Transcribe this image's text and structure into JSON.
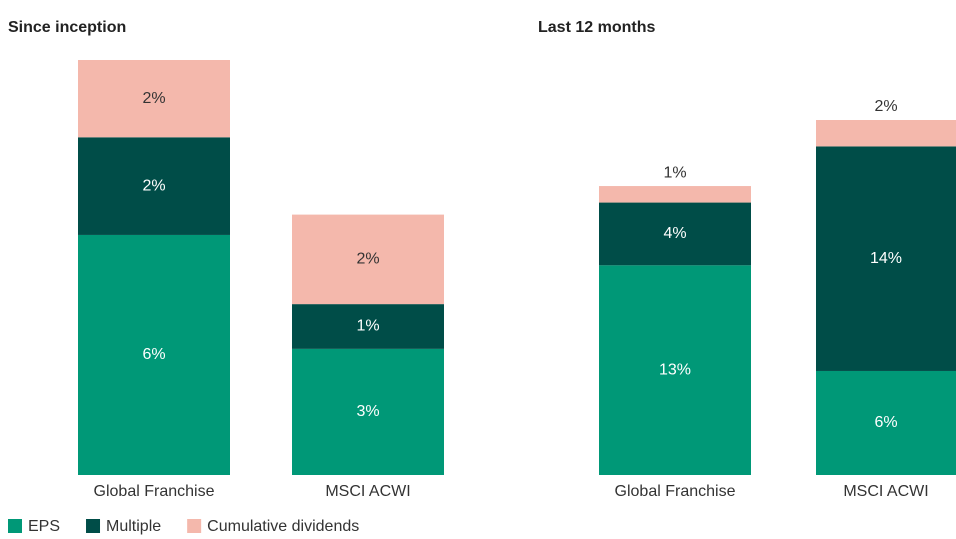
{
  "chart_data": [
    {
      "type": "stacked_bar",
      "title": "Since inception",
      "categories": [
        "Global Franchise",
        "MSCI ACWI"
      ],
      "series": [
        {
          "name": "EPS",
          "color": "#009877",
          "values": [
            5.9,
            3.1
          ],
          "value_labels": [
            "6%",
            "3%"
          ]
        },
        {
          "name": "Multiple",
          "color": "#004d48",
          "values": [
            2.4,
            1.1
          ],
          "value_labels": [
            "2%",
            "1%"
          ]
        },
        {
          "name": "Cumulative dividends",
          "color": "#f4b8ac",
          "values": [
            1.9,
            2.2
          ],
          "value_labels": [
            "2%",
            "2%"
          ]
        }
      ]
    },
    {
      "type": "stacked_bar",
      "title": "Last 12 months",
      "categories": [
        "Global Franchise",
        "MSCI ACWI"
      ],
      "series": [
        {
          "color": "#009877",
          "values": [
            12.7,
            6.3
          ],
          "value_labels": [
            "13%",
            "6%"
          ]
        },
        {
          "color": "#004d48",
          "values": [
            3.8,
            13.6
          ],
          "value_labels": [
            "4%",
            "14%"
          ]
        },
        {
          "color": "#f4b8ac",
          "values": [
            1.0,
            1.6
          ],
          "value_labels": [
            "1%",
            "2%"
          ]
        }
      ]
    }
  ]
}
